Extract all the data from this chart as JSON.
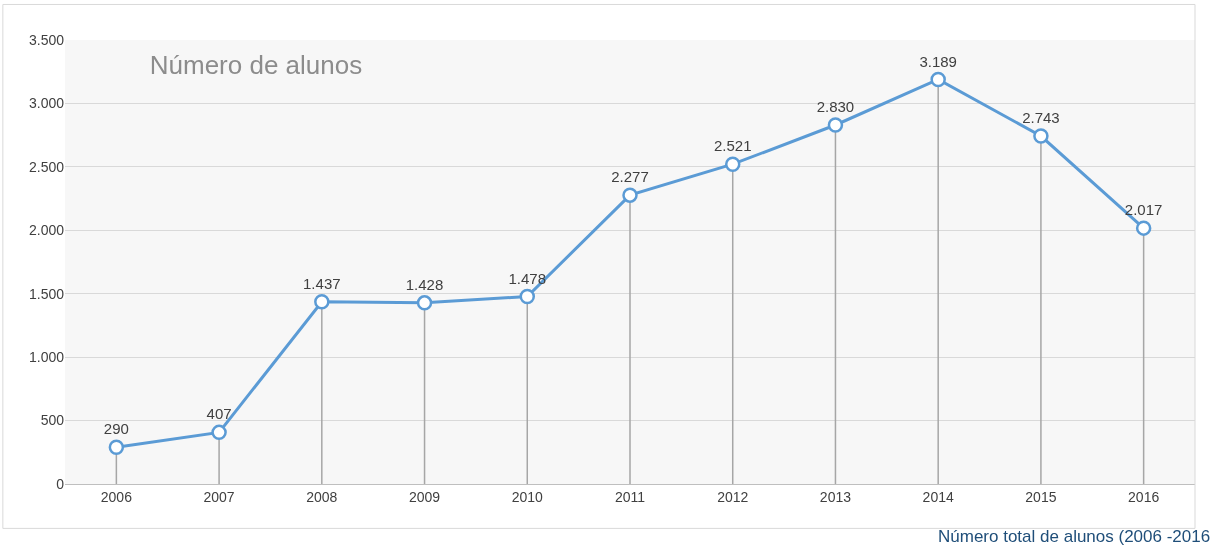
{
  "chart_data": {
    "type": "line",
    "title": "Número de alunos",
    "categories": [
      "2006",
      "2007",
      "2008",
      "2009",
      "2010",
      "2011",
      "2012",
      "2013",
      "2014",
      "2015",
      "2016"
    ],
    "series": [
      {
        "color": "#5b9bd5",
        "values": [
          290,
          407,
          1437,
          1428,
          1478,
          2277,
          2521,
          2830,
          3189,
          2743,
          2017
        ],
        "value_labels": [
          "290",
          "407",
          "1.437",
          "1.428",
          "1.478",
          "2.277",
          "2.521",
          "2.830",
          "3.189",
          "2.743",
          "2.017"
        ]
      }
    ],
    "ylim": [
      0,
      3500
    ],
    "yticks": [
      0,
      500,
      {
        "value": 1000,
        "label": "1.000"
      },
      {
        "value": 1500,
        "label": "1.500"
      },
      {
        "value": 2000,
        "label": "2.000"
      },
      {
        "value": 2500,
        "label": "2.500"
      },
      {
        "value": 3000,
        "label": "3.000"
      },
      {
        "value": 3500,
        "label": "3.500"
      }
    ],
    "grid": true,
    "marker": "circle",
    "line_style": "solid",
    "legend": false,
    "annotations": [
      "Número total de alunos (2006 -2016"
    ]
  }
}
